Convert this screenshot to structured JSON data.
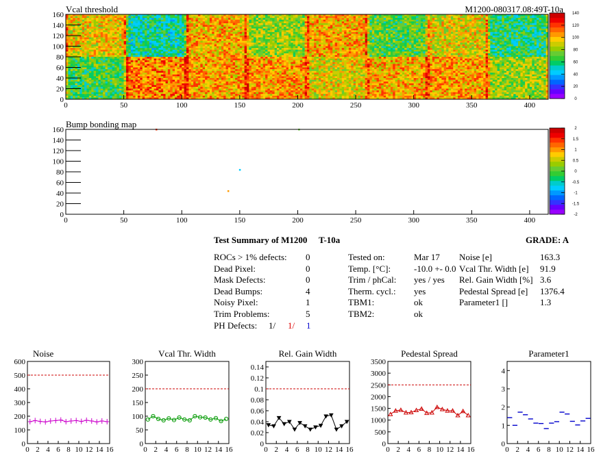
{
  "header": {
    "vcal_title": "Vcal threshold",
    "module_id": "M1200-080317.08:49T-10a",
    "bump_title": "Bump bonding map"
  },
  "map_axes": {
    "x_ticks": [
      "0",
      "50",
      "100",
      "150",
      "200",
      "250",
      "300",
      "350",
      "400"
    ],
    "y_ticks": [
      "0",
      "20",
      "40",
      "60",
      "80",
      "100",
      "120",
      "140",
      "160"
    ]
  },
  "vcal_scale": {
    "ticks": [
      "0",
      "20",
      "40",
      "60",
      "80",
      "100",
      "120",
      "140"
    ]
  },
  "bump_scale": {
    "ticks": [
      "-2",
      "-1.5",
      "-1",
      "-0.5",
      "0",
      "0.5",
      "1",
      "1.5",
      "2"
    ]
  },
  "summary": {
    "title": "Test Summary of M1200",
    "test_id": "T-10a",
    "grade": "GRADE:  A",
    "left": [
      {
        "label": "ROCs > 1% defects:",
        "value": "0"
      },
      {
        "label": "Dead Pixel:",
        "value": "0"
      },
      {
        "label": "Mask Defects:",
        "value": "0"
      },
      {
        "label": "Dead Bumps:",
        "value": "4"
      },
      {
        "label": "Noisy Pixel:",
        "value": "1"
      },
      {
        "label": "Trim Problems:",
        "value": "5"
      }
    ],
    "ph_label": "PH Defects:",
    "ph_values": [
      "1/",
      "1/",
      "1"
    ],
    "middle": [
      {
        "label": "Tested on:",
        "value": "Mar 17"
      },
      {
        "label": "Temp. [°C]:",
        "value": "-10.0 +- 0.0"
      },
      {
        "label": "Trim / phCal:",
        "value": "yes / yes"
      },
      {
        "label": "Therm. cycl.:",
        "value": "yes"
      },
      {
        "label": "TBM1:",
        "value": "ok"
      },
      {
        "label": "TBM2:",
        "value": "ok"
      }
    ],
    "right": [
      {
        "label": "Noise [e]",
        "value": "163.3"
      },
      {
        "label": "Vcal Thr. Width [e]",
        "value": "91.9"
      },
      {
        "label": "Rel. Gain Width [%]",
        "value": "3.6"
      },
      {
        "label": "Pedestal Spread [e]",
        "value": "1376.4"
      },
      {
        "label": "Parameter1 []",
        "value": "1.3"
      }
    ]
  },
  "colors": {
    "noise": "#cc00cc",
    "vcal_width": "#009900",
    "gain": "#000000",
    "pedestal": "#cc0000",
    "parameter1": "#0000cc",
    "limit": "#cc0000",
    "ph_red": "#dd0000",
    "ph_blue": "#0000cc"
  },
  "chart_data": [
    {
      "type": "heatmap",
      "title": "Vcal threshold",
      "xlim": [
        0,
        416
      ],
      "ylim": [
        0,
        160
      ],
      "zlim": [
        0,
        140
      ],
      "note_values": "per-ROC mean threshold, 8x2 ROC grid (top row left→right, bottom row left→right)",
      "roc_means": [
        [
          95,
          55,
          100,
          80,
          102,
          70,
          92,
          60
        ],
        [
          68,
          108,
          104,
          104,
          92,
          101,
          104,
          80
        ]
      ]
    },
    {
      "type": "heatmap",
      "title": "Bump bonding map",
      "xlim": [
        0,
        416
      ],
      "ylim": [
        0,
        160
      ],
      "zlim": [
        -2,
        2
      ],
      "points": [
        [
          78,
          160,
          1.5
        ],
        [
          201,
          160,
          0.2
        ],
        [
          150,
          84,
          -0.8
        ],
        [
          140,
          44,
          0.9
        ]
      ]
    },
    {
      "type": "scatter",
      "title": "Noise",
      "xlim": [
        0,
        16
      ],
      "ylim": [
        0,
        600
      ],
      "x_ticks": [
        "0",
        "2",
        "4",
        "6",
        "8",
        "10",
        "12",
        "14",
        "16"
      ],
      "y_ticks": [
        "0",
        "100",
        "200",
        "300",
        "400",
        "500",
        "600"
      ],
      "limit": 500,
      "x": [
        0,
        1,
        2,
        3,
        4,
        5,
        6,
        7,
        8,
        9,
        10,
        11,
        12,
        13,
        14,
        15
      ],
      "values": [
        160,
        168,
        162,
        158,
        165,
        168,
        172,
        160,
        165,
        168,
        162,
        170,
        165,
        158,
        165,
        160
      ]
    },
    {
      "type": "line",
      "title": "Vcal Thr. Width",
      "xlim": [
        0,
        16
      ],
      "ylim": [
        0,
        300
      ],
      "x_ticks": [
        "0",
        "2",
        "4",
        "6",
        "8",
        "10",
        "12",
        "14",
        "16"
      ],
      "y_ticks": [
        "0",
        "50",
        "100",
        "150",
        "200",
        "250",
        "300"
      ],
      "limit": 200,
      "x": [
        0,
        1,
        2,
        3,
        4,
        5,
        6,
        7,
        8,
        9,
        10,
        11,
        12,
        13,
        14,
        15
      ],
      "values": [
        88,
        100,
        90,
        85,
        92,
        86,
        95,
        88,
        85,
        100,
        96,
        95,
        88,
        93,
        82,
        90
      ]
    },
    {
      "type": "line",
      "title": "Rel. Gain Width",
      "xlim": [
        0,
        16
      ],
      "ylim": [
        0,
        0.15
      ],
      "x_ticks": [
        "0",
        "2",
        "4",
        "6",
        "8",
        "10",
        "12",
        "14",
        "16"
      ],
      "y_ticks": [
        "0",
        "0.02",
        "0.04",
        "0.06",
        "0.08",
        "0.1",
        "0.12",
        "0.14"
      ],
      "limit": 0.1,
      "x": [
        0,
        1,
        2,
        3,
        4,
        5,
        6,
        7,
        8,
        9,
        10,
        11,
        12,
        13,
        14,
        15
      ],
      "values": [
        0.034,
        0.032,
        0.047,
        0.036,
        0.04,
        0.026,
        0.038,
        0.032,
        0.026,
        0.03,
        0.033,
        0.05,
        0.052,
        0.026,
        0.032,
        0.04
      ]
    },
    {
      "type": "line",
      "title": "Pedestal Spread",
      "xlim": [
        0,
        16
      ],
      "ylim": [
        0,
        3500
      ],
      "x_ticks": [
        "0",
        "2",
        "4",
        "6",
        "8",
        "10",
        "12",
        "14",
        "16"
      ],
      "y_ticks": [
        "0",
        "500",
        "1000",
        "1500",
        "2000",
        "2500",
        "3000",
        "3500"
      ],
      "limit": 2500,
      "x": [
        0,
        1,
        2,
        3,
        4,
        5,
        6,
        7,
        8,
        9,
        10,
        11,
        12,
        13,
        14,
        15
      ],
      "values": [
        1250,
        1400,
        1430,
        1320,
        1330,
        1420,
        1480,
        1300,
        1320,
        1550,
        1460,
        1400,
        1400,
        1200,
        1380,
        1200
      ]
    },
    {
      "type": "scatter",
      "title": "Parameter1",
      "xlim": [
        0,
        16
      ],
      "ylim": [
        0,
        4.5
      ],
      "x_ticks": [
        "0",
        "2",
        "4",
        "6",
        "8",
        "10",
        "12",
        "14",
        "16"
      ],
      "y_ticks": [
        "0",
        "1",
        "2",
        "3",
        "4"
      ],
      "x": [
        0,
        1,
        2,
        3,
        4,
        5,
        6,
        7,
        8,
        9,
        10,
        11,
        12,
        13,
        14,
        15
      ],
      "values": [
        1.42,
        1.0,
        1.72,
        1.58,
        1.35,
        1.12,
        1.1,
        0.82,
        1.12,
        1.2,
        1.72,
        1.62,
        1.22,
        1.02,
        1.24,
        1.38
      ]
    }
  ]
}
